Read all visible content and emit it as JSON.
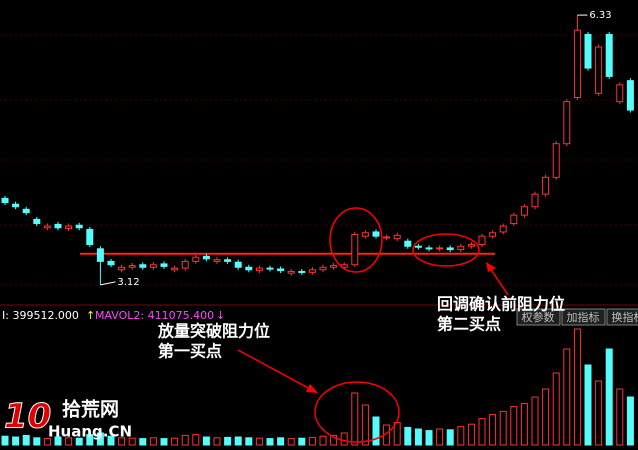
{
  "chart_data": {
    "type": "candlestick",
    "open": [
      4.15,
      4.08,
      4.02,
      3.9,
      3.8,
      3.84,
      3.79,
      3.83,
      3.78,
      3.55,
      3.4,
      3.3,
      3.33,
      3.36,
      3.33,
      3.37,
      3.3,
      3.32,
      3.4,
      3.46,
      3.4,
      3.42,
      3.39,
      3.33,
      3.29,
      3.32,
      3.31,
      3.26,
      3.28,
      3.27,
      3.3,
      3.33,
      3.33,
      3.36,
      3.7,
      3.75,
      3.68,
      3.67,
      3.64,
      3.58,
      3.56,
      3.55,
      3.56,
      3.54,
      3.58,
      3.6,
      3.7,
      3.75,
      3.85,
      3.95,
      4.05,
      4.2,
      4.4,
      4.8,
      5.35,
      6.1,
      5.4,
      6.1,
      5.3,
      5.55
    ],
    "high": [
      4.18,
      4.11,
      4.05,
      3.93,
      3.85,
      3.87,
      3.85,
      3.86,
      3.81,
      3.58,
      3.43,
      3.36,
      3.38,
      3.39,
      3.39,
      3.4,
      3.35,
      3.43,
      3.48,
      3.49,
      3.45,
      3.45,
      3.42,
      3.36,
      3.35,
      3.35,
      3.34,
      3.31,
      3.31,
      3.33,
      3.36,
      3.38,
      3.39,
      3.75,
      3.77,
      3.78,
      3.72,
      3.74,
      3.67,
      3.61,
      3.59,
      3.59,
      3.59,
      3.61,
      3.63,
      3.73,
      3.77,
      3.85,
      3.98,
      4.08,
      4.23,
      4.43,
      4.83,
      5.33,
      6.33,
      6.13,
      5.98,
      6.13,
      5.53,
      5.58
    ],
    "low": [
      4.07,
      4.02,
      3.95,
      3.82,
      3.77,
      3.77,
      3.76,
      3.77,
      3.57,
      3.12,
      3.33,
      3.27,
      3.3,
      3.3,
      3.3,
      3.31,
      3.27,
      3.29,
      3.37,
      3.4,
      3.37,
      3.37,
      3.3,
      3.27,
      3.26,
      3.28,
      3.26,
      3.23,
      3.24,
      3.24,
      3.27,
      3.3,
      3.3,
      3.33,
      3.67,
      3.67,
      3.65,
      3.64,
      3.55,
      3.54,
      3.52,
      3.52,
      3.51,
      3.51,
      3.55,
      3.57,
      3.67,
      3.72,
      3.82,
      3.92,
      4.02,
      4.17,
      4.37,
      4.77,
      5.32,
      5.67,
      5.37,
      5.57,
      5.27,
      5.17
    ],
    "close": [
      4.1,
      4.05,
      3.98,
      3.85,
      3.82,
      3.8,
      3.82,
      3.8,
      3.6,
      3.4,
      3.36,
      3.33,
      3.35,
      3.33,
      3.36,
      3.34,
      3.32,
      3.4,
      3.45,
      3.43,
      3.42,
      3.4,
      3.33,
      3.3,
      3.32,
      3.31,
      3.29,
      3.28,
      3.27,
      3.3,
      3.33,
      3.35,
      3.36,
      3.72,
      3.74,
      3.7,
      3.69,
      3.71,
      3.58,
      3.57,
      3.55,
      3.56,
      3.54,
      3.58,
      3.6,
      3.7,
      3.74,
      3.82,
      3.95,
      4.05,
      4.2,
      4.4,
      4.8,
      5.3,
      6.15,
      5.7,
      5.95,
      5.6,
      5.5,
      5.2
    ],
    "volume": [
      110000,
      100000,
      120000,
      90000,
      80000,
      100000,
      90000,
      85000,
      130000,
      150000,
      110000,
      90000,
      85000,
      80000,
      90000,
      80000,
      85000,
      120000,
      130000,
      100000,
      90000,
      95000,
      100000,
      90000,
      85000,
      80000,
      90000,
      80000,
      85000,
      95000,
      110000,
      120000,
      150000,
      650000,
      500000,
      350000,
      250000,
      280000,
      220000,
      200000,
      180000,
      200000,
      190000,
      230000,
      260000,
      330000,
      380000,
      420000,
      480000,
      520000,
      600000,
      700000,
      900000,
      1200000,
      1450000,
      1000000,
      800000,
      1200000,
      700000,
      600000
    ],
    "ylim": [
      3.0,
      6.45
    ],
    "vol_ylim": [
      0,
      1500000
    ],
    "up_color": "#ff3232",
    "down_color": "#54fcfc",
    "resistance": 3.49,
    "high_label": "6.33",
    "low_label": "3.12",
    "indicator_1": "I: 399512.000",
    "indicator_2": "MAVOL2: 411075.400",
    "tabs": [
      "权参数",
      "加指标",
      "换指标"
    ],
    "annotation_1": [
      "放量突破阻力位",
      "第一买点"
    ],
    "annotation_2": [
      "回调确认前阻力位",
      "第二买点"
    ],
    "logo": [
      "10",
      "拾荒网",
      "Huang.CN"
    ]
  }
}
